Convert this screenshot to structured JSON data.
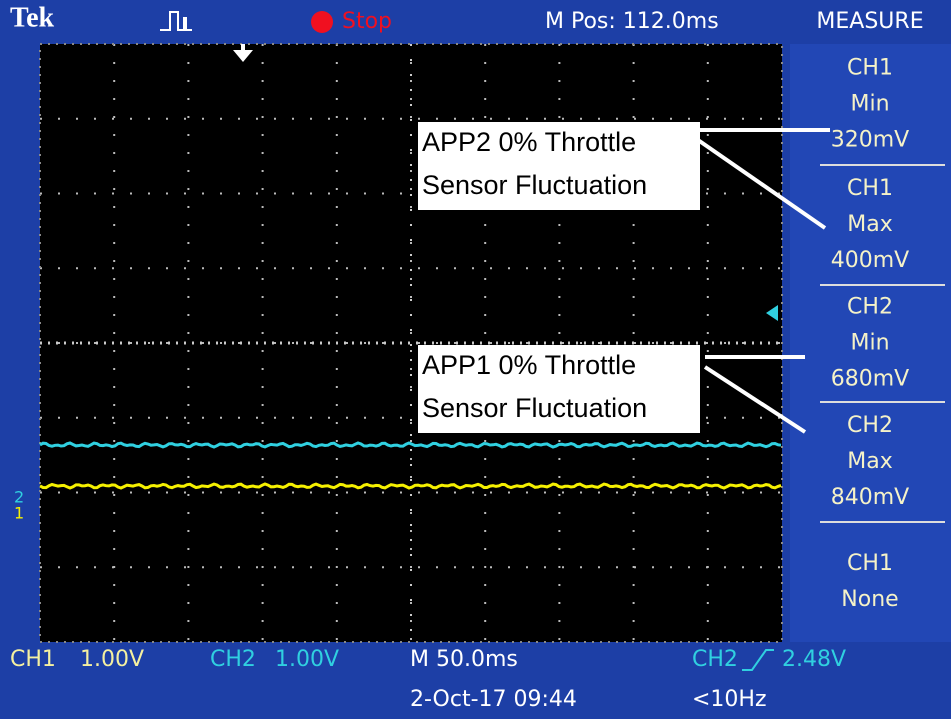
{
  "header": {
    "brand": "Tek",
    "status": "Stop",
    "position": "M Pos: 112.0ms",
    "menu": "MEASURE"
  },
  "measurements": [
    {
      "channel": "CH1",
      "type": "Min",
      "value": "320mV"
    },
    {
      "channel": "CH1",
      "type": "Max",
      "value": "400mV"
    },
    {
      "channel": "CH2",
      "type": "Min",
      "value": "680mV"
    },
    {
      "channel": "CH2",
      "type": "Max",
      "value": "840mV"
    },
    {
      "channel": "CH1",
      "type": "None"
    }
  ],
  "annotations": [
    {
      "lines": [
        "APP2 0% Throttle",
        "Sensor Fluctuation"
      ]
    },
    {
      "lines": [
        "APP1 0% Throttle",
        "Sensor Fluctuation"
      ]
    }
  ],
  "channel_markers": [
    "2",
    "1"
  ],
  "footer": {
    "ch1": "CH1",
    "ch1_scale": "1.00V",
    "ch2": "CH2",
    "ch2_scale": "1.00V",
    "timebase": "M 50.0ms",
    "trigger_source": "CH2",
    "trigger_level": "2.48V",
    "date": "2-Oct-17 09:44",
    "frequency": "<10Hz"
  }
}
